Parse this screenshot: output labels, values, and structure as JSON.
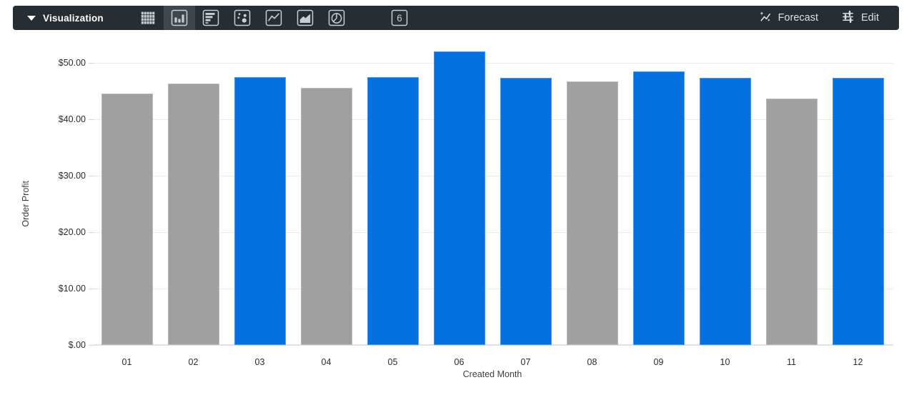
{
  "toolbar": {
    "visualization_label": "Visualization",
    "forecast_label": "Forecast",
    "edit_label": "Edit",
    "chart_type_icons": [
      {
        "name": "table",
        "selected": false
      },
      {
        "name": "column-chart",
        "selected": true
      },
      {
        "name": "bar-chart",
        "selected": false
      },
      {
        "name": "scatter-plot",
        "selected": false
      },
      {
        "name": "line-chart",
        "selected": false
      },
      {
        "name": "area-chart",
        "selected": false
      },
      {
        "name": "pie-chart",
        "selected": false
      },
      {
        "name": "map-pin",
        "selected": false
      },
      {
        "name": "single-value",
        "label": "6",
        "selected": false
      },
      {
        "name": "more-options",
        "selected": false
      }
    ],
    "colors": {
      "bg": "#262d33",
      "selected_bg": "#3f474e",
      "icon": "#c9ced2",
      "text": "#ffffff",
      "button_text": "#dce0e3"
    }
  },
  "chart_data": {
    "type": "bar",
    "title": "",
    "xlabel": "Created Month",
    "ylabel": "Order Profit",
    "categories": [
      "01",
      "02",
      "03",
      "04",
      "05",
      "06",
      "07",
      "08",
      "09",
      "10",
      "11",
      "12"
    ],
    "values": [
      44.5,
      46.3,
      47.5,
      45.6,
      47.5,
      52.0,
      47.3,
      46.7,
      48.5,
      47.3,
      43.7,
      47.3
    ],
    "bar_colors": [
      "gray",
      "gray",
      "blue",
      "gray",
      "blue",
      "blue",
      "blue",
      "gray",
      "blue",
      "blue",
      "gray",
      "blue"
    ],
    "palette": {
      "blue": "#0571e0",
      "gray": "#a0a0a0"
    },
    "yticks": [
      {
        "label": "$50.00",
        "value": 50
      },
      {
        "label": "$40.00",
        "value": 40
      },
      {
        "label": "$30.00",
        "value": 30
      },
      {
        "label": "$20.00",
        "value": 20
      },
      {
        "label": "$10.00",
        "value": 10
      },
      {
        "label": "$.00",
        "value": 0
      }
    ],
    "ylim": [
      0,
      52.5
    ],
    "grid": true,
    "legend": "none"
  }
}
